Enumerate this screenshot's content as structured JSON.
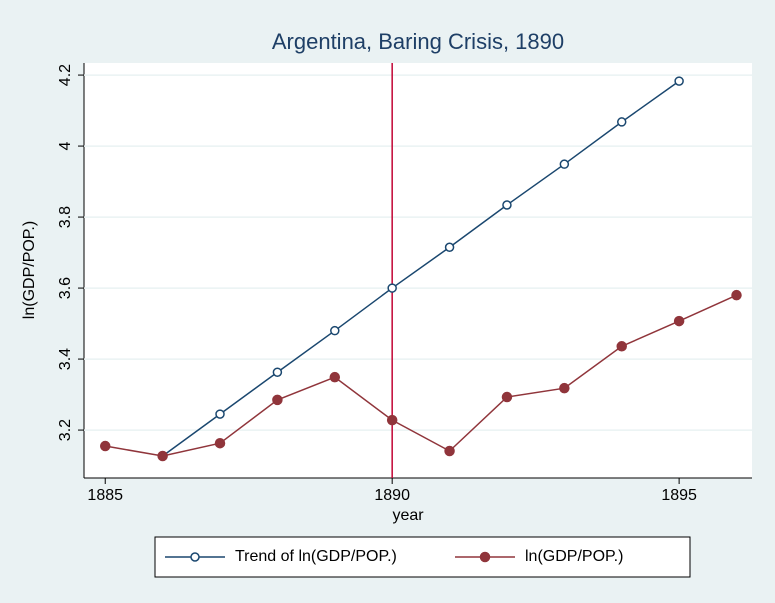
{
  "chart_data": {
    "type": "line",
    "title": "Argentina, Baring Crisis, 1890",
    "x_label": "year",
    "y_label": "ln(GDP/POP.)",
    "x": [
      1885,
      1886,
      1887,
      1888,
      1889,
      1890,
      1891,
      1892,
      1893,
      1894,
      1895,
      1896
    ],
    "series": [
      {
        "name": "Trend of ln(GDP/POP.)",
        "color": "#1a476f",
        "marker": "hollow",
        "values": [
          null,
          3.127,
          3.245,
          3.363,
          3.48,
          3.6,
          3.715,
          3.834,
          3.949,
          4.068,
          4.183,
          null
        ]
      },
      {
        "name": "ln(GDP/POP.)",
        "color": "#90353b",
        "marker": "filled",
        "values": [
          3.155,
          3.127,
          3.163,
          3.285,
          3.349,
          3.228,
          3.141,
          3.293,
          3.318,
          3.436,
          3.507,
          3.58
        ]
      }
    ],
    "xlim": [
      1884.63,
      1896.27
    ],
    "xticks": [
      1885,
      1890,
      1895
    ],
    "ylim": [
      3.065,
      4.234
    ],
    "yticks": [
      3.2,
      3.4,
      3.6,
      3.8,
      4,
      4.2
    ],
    "xline": 1890,
    "xline_color": "#c10534",
    "grid": true
  }
}
